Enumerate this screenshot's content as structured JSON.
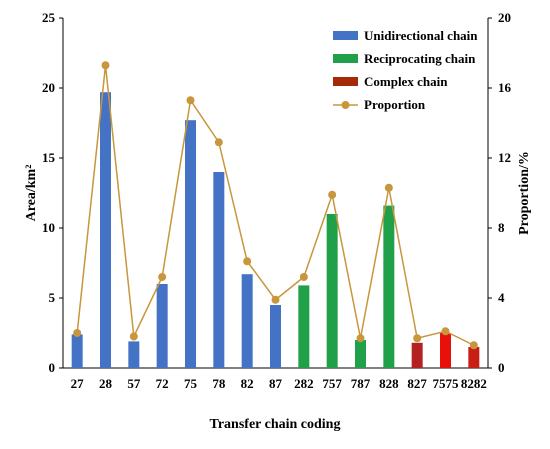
{
  "chart_data": {
    "type": "bar",
    "categories": [
      "27",
      "28",
      "57",
      "72",
      "75",
      "78",
      "82",
      "87",
      "282",
      "757",
      "787",
      "828",
      "827",
      "7575",
      "8282"
    ],
    "series": [
      {
        "name": "Unidirectional chain",
        "type": "bar",
        "axis": "left",
        "color": "#4472C4",
        "values": [
          2.4,
          19.7,
          1.9,
          6.0,
          17.7,
          14.0,
          6.7,
          4.5,
          null,
          null,
          null,
          null,
          null,
          null,
          null
        ]
      },
      {
        "name": "Reciprocating chain",
        "type": "bar",
        "axis": "left",
        "color": "#21A04A",
        "values": [
          null,
          null,
          null,
          null,
          null,
          null,
          null,
          null,
          5.9,
          11.0,
          2.0,
          11.6,
          null,
          null,
          null
        ]
      },
      {
        "name": "Complex chain",
        "type": "bar",
        "axis": "left",
        "color": "#A52A0A",
        "point_colors": [
          "#B22222",
          "#E8100A",
          "#C81E14"
        ],
        "values": [
          null,
          null,
          null,
          null,
          null,
          null,
          null,
          null,
          null,
          null,
          null,
          null,
          1.8,
          2.5,
          1.5
        ]
      },
      {
        "name": "Proportion",
        "type": "line",
        "axis": "right",
        "color": "#C8963C",
        "values": [
          2.0,
          17.3,
          1.8,
          5.2,
          15.3,
          12.9,
          6.1,
          3.9,
          5.2,
          9.9,
          1.7,
          10.3,
          1.7,
          2.1,
          1.3
        ]
      }
    ],
    "xlabel": "Transfer chain coding",
    "ylabel": "Area/km²",
    "y2label": "Proportion/%",
    "ylim": [
      0,
      25
    ],
    "y2lim": [
      0,
      20
    ],
    "yticks": [
      "0",
      "5",
      "10",
      "15",
      "20",
      "25"
    ],
    "y2ticks": [
      "0",
      "4",
      "8",
      "12",
      "16",
      "20"
    ],
    "legend_position": "top-right",
    "grid": false
  }
}
